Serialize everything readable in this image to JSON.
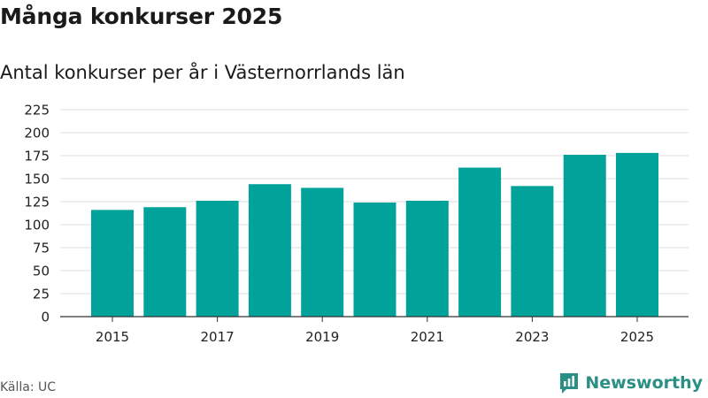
{
  "chart_data": {
    "type": "bar",
    "title": "Många konkurser 2025",
    "subtitle": "Antal konkurser per år i Västernorrlands län",
    "categories": [
      "2015",
      "2016",
      "2017",
      "2018",
      "2019",
      "2020",
      "2021",
      "2022",
      "2023",
      "2024",
      "2025"
    ],
    "values": [
      116,
      119,
      126,
      144,
      140,
      124,
      126,
      162,
      142,
      176,
      178
    ],
    "x_tick_labels": [
      "2015",
      "2017",
      "2019",
      "2021",
      "2023",
      "2025"
    ],
    "y_ticks": [
      0,
      25,
      50,
      75,
      100,
      125,
      150,
      175,
      200,
      225
    ],
    "y_tick_labels": [
      "0",
      "25",
      "50",
      "75",
      "100",
      "125",
      "150",
      "175",
      "200",
      "225"
    ],
    "ylim": [
      0,
      225
    ],
    "xlabel": "",
    "ylabel": "",
    "grid": true,
    "legend": "none",
    "bar_color": "#00a29a",
    "grid_color": "#dddddd",
    "axis_color": "#333333"
  },
  "footer": {
    "source": "Källa: UC",
    "brand": "Newsworthy",
    "brand_icon": "newsworthy-logo-icon",
    "brand_color": "#2a8f84"
  }
}
